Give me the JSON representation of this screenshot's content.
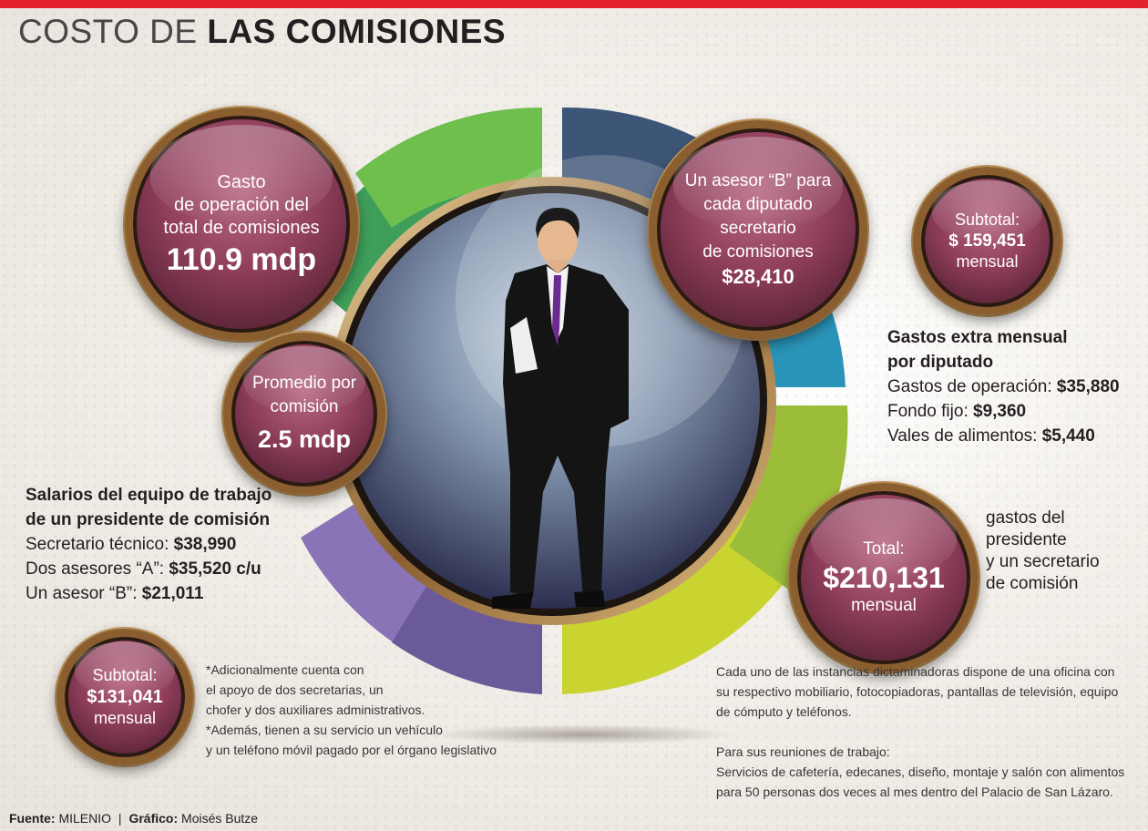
{
  "title": {
    "light": "COSTO DE",
    "bold": "LAS COMISIONES"
  },
  "colors": {
    "accent_red": "#e3202b",
    "bubble": "#8e3d5a",
    "ring_green": "#3f9e5a",
    "ring_blue": "#2a94b8",
    "ring_yellow": "#c9d431",
    "ring_purple": "#8a74b8"
  },
  "bubbles": {
    "gasto": {
      "line1": "Gasto",
      "line2": "de operación del",
      "line3": "total de comisiones",
      "value": "110.9 mdp"
    },
    "promedio": {
      "line1": "Promedio por",
      "line2": "comisión",
      "value": "2.5 mdp"
    },
    "asesor_b": {
      "line1": "Un asesor “B” para",
      "line2": "cada diputado",
      "line3": "secretario",
      "line4": "de comisiones",
      "value": "$28,410"
    },
    "subtotal_right": {
      "label": "Subtotal:",
      "value": "$ 159,451",
      "unit": "mensual"
    },
    "total": {
      "label": "Total:",
      "value": "$210,131",
      "unit": "mensual"
    },
    "subtotal_left": {
      "label": "Subtotal:",
      "value": "$131,041",
      "unit": "mensual"
    }
  },
  "gastos_extra": {
    "heading1": "Gastos extra mensual",
    "heading2": "por diputado",
    "items": [
      {
        "label": "Gastos de operación:",
        "value": "$35,880"
      },
      {
        "label": "Fondo fijo:",
        "value": "$9,360"
      },
      {
        "label": "Vales de alimentos:",
        "value": "$5,440"
      }
    ]
  },
  "total_caption": {
    "line1": "gastos del",
    "line2": "presidente",
    "line3": "y un secretario",
    "line4": "de comisión"
  },
  "salarios": {
    "heading1": "Salarios del equipo de trabajo",
    "heading2": "de un presidente de comisión",
    "items": [
      {
        "label": "Secretario técnico:",
        "value": "$38,990"
      },
      {
        "label": "Dos asesores “A”:",
        "value": "$35,520 c/u"
      },
      {
        "label": "Un asesor “B”:",
        "value": "$21,011"
      }
    ]
  },
  "notes_left": [
    "*Adicionalmente cuenta con",
    "el apoyo de dos secretarias, un",
    "chofer y dos auxiliares administrativos.",
    "*Además, tienen a su servicio un vehículo",
    "y un teléfono móvil pagado por el órgano legislativo"
  ],
  "notes_right": [
    "Cada uno de las instancias dictaminadoras dispone de una oficina con",
    "su respectivo mobiliario, fotocopiadoras, pantallas de televisión, equipo",
    "de cómputo y teléfonos.",
    "",
    "Para sus reuniones de trabajo:",
    "Servicios de cafetería, edecanes, diseño, montaje y salón con alimentos",
    "para 50 personas dos veces al mes dentro del Palacio de San Lázaro."
  ],
  "footer": {
    "fuente_label": "Fuente:",
    "fuente": "MILENIO",
    "sep": "|",
    "grafico_label": "Gráfico:",
    "grafico": "Moisés Butze"
  }
}
